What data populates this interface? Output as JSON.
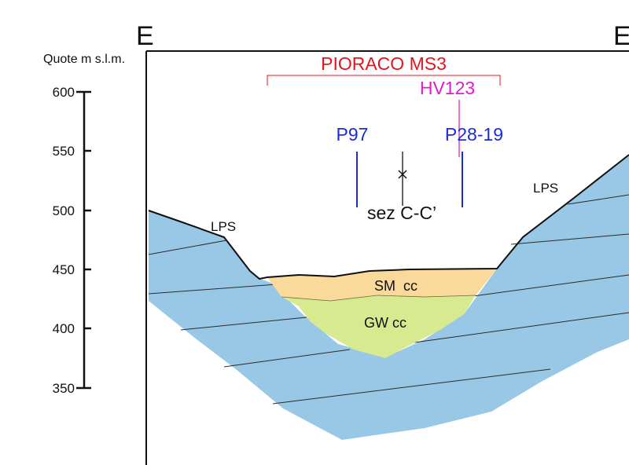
{
  "header": {
    "left_label": "E",
    "right_label": "E",
    "axis_title": "Quote m s.l.m."
  },
  "axis": {
    "ticks": [
      "600",
      "550",
      "500",
      "450",
      "400",
      "350"
    ]
  },
  "labels": {
    "site": "PIORACO MS3",
    "hv": "HV123",
    "borehole_a": "P97",
    "borehole_b": "P28-19",
    "section": "sez C-C’",
    "bedrock_left": "LPS",
    "bedrock_right": "LPS",
    "upper_fill": "SM  cc",
    "lower_fill": "GW cc"
  },
  "colors": {
    "bedrock": "#99c8e6",
    "upper_fill": "#f9da9b",
    "lower_fill": "#d7ea8f",
    "site": "#e4141c",
    "hv": "#e01ad0",
    "borehole": "#1c2cd4"
  }
}
